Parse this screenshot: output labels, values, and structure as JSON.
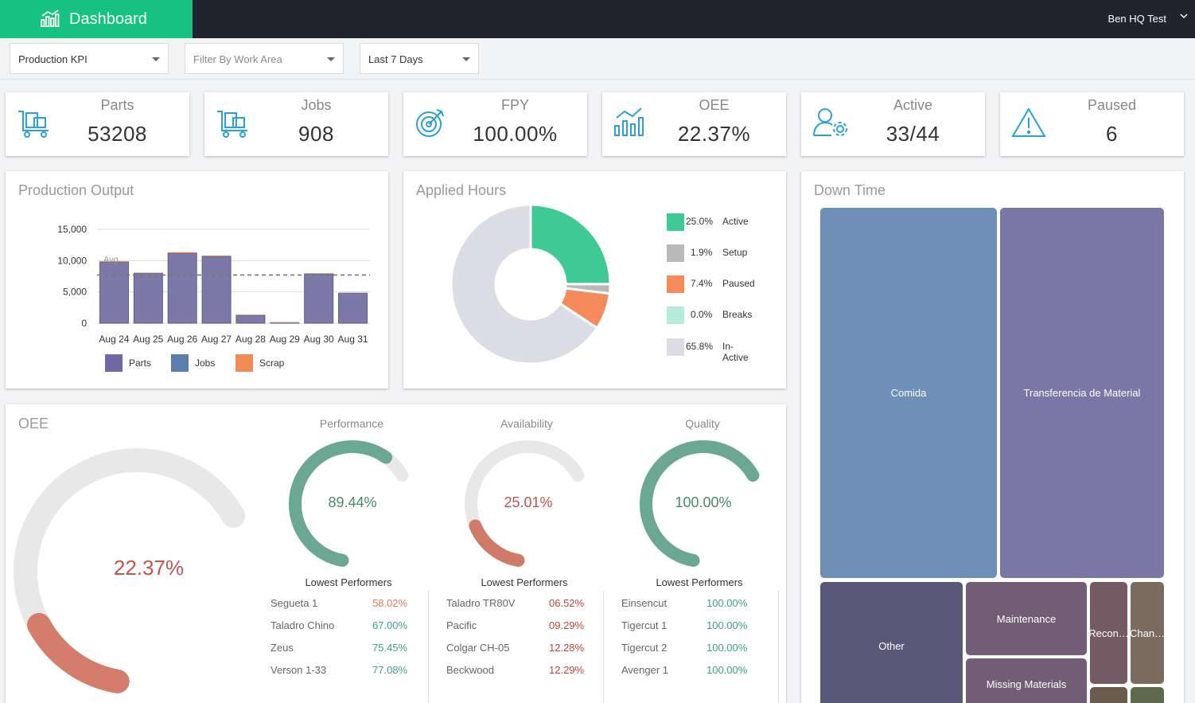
{
  "header": {
    "title": "Dashboard",
    "user": "Ben HQ Test"
  },
  "filters": {
    "kpi_select": "Production KPI",
    "work_area_placeholder": "Filter By Work Area",
    "range_select": "Last 7 Days"
  },
  "kpis": [
    {
      "label": "Parts",
      "value": "53208",
      "icon": "cart-icon"
    },
    {
      "label": "Jobs",
      "value": "908",
      "icon": "cart-icon"
    },
    {
      "label": "FPY",
      "value": "100.00%",
      "icon": "target-icon"
    },
    {
      "label": "OEE",
      "value": "22.37%",
      "icon": "chart-icon"
    },
    {
      "label": "Active",
      "value": "33/44",
      "icon": "user-gear-icon"
    },
    {
      "label": "Paused",
      "value": "6",
      "icon": "warning-icon"
    }
  ],
  "production_output": {
    "title": "Production Output",
    "avg_label": "Avg",
    "legend": [
      {
        "name": "Parts",
        "color": "#6f6aa1"
      },
      {
        "name": "Jobs",
        "color": "#5b7fb0"
      },
      {
        "name": "Scrap",
        "color": "#f08c52"
      }
    ]
  },
  "applied_hours": {
    "title": "Applied Hours",
    "legend": [
      {
        "pct": "25.0%",
        "name": "Active",
        "color": "#3ec995"
      },
      {
        "pct": "1.9%",
        "name": "Setup",
        "color": "#b9b9b9"
      },
      {
        "pct": "7.4%",
        "name": "Paused",
        "color": "#f58b5a"
      },
      {
        "pct": "0.0%",
        "name": "Breaks",
        "color": "#b5ecd7"
      },
      {
        "pct": "65.8%",
        "name": "In-Active",
        "color": "#dcdce6"
      }
    ]
  },
  "oee": {
    "title": "OEE",
    "value": "22.37%",
    "fraction": 0.2237,
    "gauges": [
      {
        "title": "Performance",
        "value": "89.44%",
        "fraction": 0.8944,
        "color": "#6aa894",
        "text_color": "#4a8a6a",
        "lowest_title": "Lowest Performers",
        "rows": [
          {
            "name": "Segueta 1",
            "value": "58.02%",
            "color": "#e07a5a"
          },
          {
            "name": "Taladro Chino",
            "value": "67.00%",
            "color": "#3aa57a"
          },
          {
            "name": "Zeus",
            "value": "75.45%",
            "color": "#3aa57a"
          },
          {
            "name": "Verson 1-33",
            "value": "77.08%",
            "color": "#3aa57a"
          }
        ]
      },
      {
        "title": "Availability",
        "value": "25.01%",
        "fraction": 0.2501,
        "color": "#d07b6a",
        "text_color": "#c0544a",
        "lowest_title": "Lowest Performers",
        "rows": [
          {
            "name": "Taladro TR80V",
            "value": "06.52%",
            "color": "#c0443a"
          },
          {
            "name": "Pacific",
            "value": "09.29%",
            "color": "#c0443a"
          },
          {
            "name": "Colgar CH-05",
            "value": "12.28%",
            "color": "#c0443a"
          },
          {
            "name": "Beckwood",
            "value": "12.29%",
            "color": "#c0443a"
          }
        ]
      },
      {
        "title": "Quality",
        "value": "100.00%",
        "fraction": 1.0,
        "color": "#6aa894",
        "text_color": "#4a8a6a",
        "lowest_title": "Lowest Performers",
        "rows": [
          {
            "name": "Einsencut",
            "value": "100.00%",
            "color": "#3aa57a"
          },
          {
            "name": "Tigercut 1",
            "value": "100.00%",
            "color": "#3aa57a"
          },
          {
            "name": "Tigercut 2",
            "value": "100.00%",
            "color": "#3aa57a"
          },
          {
            "name": "Avenger 1",
            "value": "100.00%",
            "color": "#3aa57a"
          }
        ]
      }
    ]
  },
  "downtime": {
    "title": "Down Time",
    "cells": [
      {
        "label": "Comida",
        "color": "#6d8fb8"
      },
      {
        "label": "Transferencia de Material",
        "color": "#7a77a6"
      },
      {
        "label": "Other",
        "color": "#5a5878"
      },
      {
        "label": "Maintenance",
        "color": "#725c76"
      },
      {
        "label": "Missing Materials",
        "color": "#725c76"
      },
      {
        "label": "Recon…",
        "color": "#755a63"
      },
      {
        "label": "Chan…",
        "color": "#7a6b5e"
      }
    ]
  },
  "chart_data": [
    {
      "type": "bar",
      "title": "Production Output",
      "categories": [
        "Aug 24",
        "Aug 25",
        "Aug 26",
        "Aug 27",
        "Aug 28",
        "Aug 29",
        "Aug 30",
        "Aug 31"
      ],
      "series": [
        {
          "name": "Parts",
          "values": [
            9800,
            8000,
            11200,
            10700,
            1300,
            100,
            7900,
            4800
          ]
        },
        {
          "name": "Jobs",
          "values": [
            0,
            0,
            0,
            0,
            0,
            0,
            0,
            0
          ]
        },
        {
          "name": "Scrap",
          "values": [
            100,
            60,
            150,
            100,
            30,
            5,
            60,
            60
          ]
        }
      ],
      "avg": 7700,
      "yticks": [
        "0",
        "5,000",
        "10,000",
        "15,000"
      ],
      "ylim": [
        0,
        15000
      ],
      "stacked": true,
      "legend": "bottom"
    },
    {
      "type": "pie",
      "title": "Applied Hours",
      "donut": true,
      "slices": [
        {
          "name": "Active",
          "value": 25.0
        },
        {
          "name": "Setup",
          "value": 1.9
        },
        {
          "name": "Paused",
          "value": 7.4
        },
        {
          "name": "Breaks",
          "value": 0.0
        },
        {
          "name": "In-Active",
          "value": 65.8
        }
      ],
      "legend": "right"
    }
  ]
}
